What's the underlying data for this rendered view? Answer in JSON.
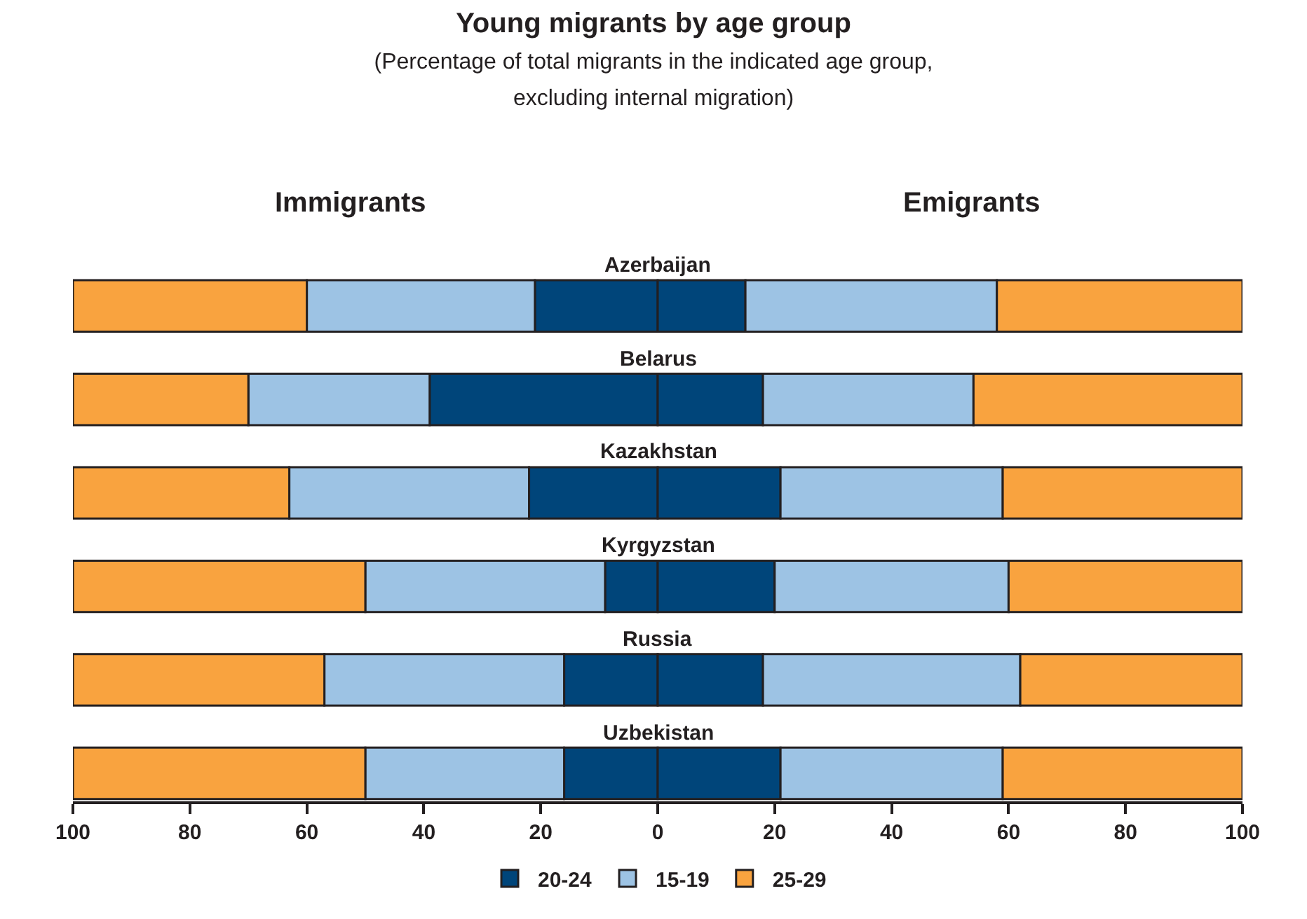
{
  "chart_data": {
    "type": "bar",
    "orientation": "horizontal",
    "stacked": true,
    "title": "Young migrants by age group",
    "subtitle": "(Percentage of total migrants in the indicated age group,\nexcluding internal migration)",
    "annotations": [
      "Immigrants",
      "Emigrants"
    ],
    "categories": [
      "Azerbaijan",
      "Belarus",
      "Kazakhstan",
      "Kyrgyzstan",
      "Russia",
      "Uzbekistan"
    ],
    "series": [
      {
        "name": "20-24",
        "color": "#00457a",
        "values": [
          -21,
          -39,
          -22,
          -9,
          -16,
          -16
        ]
      },
      {
        "color": "#00457a",
        "values": [
          15,
          18,
          21,
          20,
          18,
          21
        ]
      },
      {
        "name": "15-19",
        "color": "#9dc3e4",
        "values": [
          -39,
          -31,
          -41,
          -41,
          -41,
          -34
        ]
      },
      {
        "color": "#9dc3e4",
        "values": [
          43,
          36,
          38,
          40,
          44,
          38
        ]
      },
      {
        "name": "25-29",
        "color": "#f9a33f",
        "values": [
          -40,
          -30,
          -37,
          -50,
          -43,
          -50
        ]
      },
      {
        "color": "#f9a33f",
        "values": [
          42,
          46,
          41,
          40,
          38,
          41
        ]
      }
    ],
    "xlim": [
      -100,
      100
    ],
    "xticks": [
      {
        "value": -100,
        "label": "100"
      },
      {
        "value": -80,
        "label": "80"
      },
      {
        "value": -60,
        "label": "60"
      },
      {
        "value": -40,
        "label": "40"
      },
      {
        "value": -20,
        "label": "20"
      },
      0,
      20,
      40,
      60,
      80,
      100
    ],
    "tick_labels": "x",
    "legend": "bottom"
  }
}
